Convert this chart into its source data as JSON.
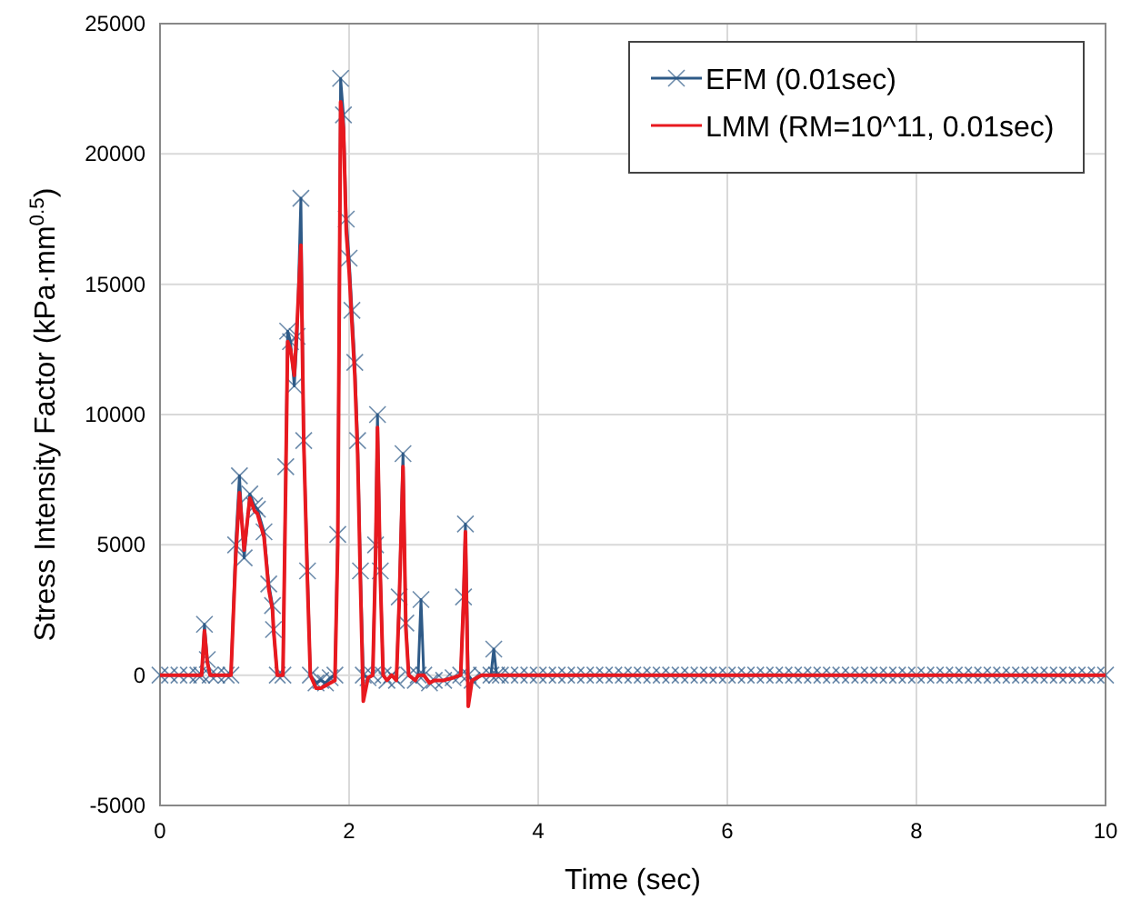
{
  "chart_data": {
    "type": "line",
    "xlabel": "Time (sec)",
    "ylabel": "Stress Intensity Factor (kPa·mm$^{0.5}$)",
    "x": [
      0,
      0.1,
      0.2,
      0.3,
      0.4,
      0.44,
      0.47,
      0.5,
      0.53,
      0.6,
      0.7,
      0.75,
      0.8,
      0.84,
      0.89,
      0.95,
      1.0,
      1.03,
      1.1,
      1.15,
      1.19,
      1.2,
      1.24,
      1.3,
      1.33,
      1.35,
      1.38,
      1.42,
      1.45,
      1.49,
      1.52,
      1.56,
      1.59,
      1.65,
      1.7,
      1.75,
      1.8,
      1.85,
      1.88,
      1.91,
      1.94,
      1.97,
      2.0,
      2.03,
      2.06,
      2.09,
      2.12,
      2.15,
      2.2,
      2.25,
      2.28,
      2.3,
      2.33,
      2.36,
      2.4,
      2.45,
      2.5,
      2.53,
      2.57,
      2.6,
      2.63,
      2.7,
      2.73,
      2.76,
      2.79,
      2.85,
      2.9,
      3.0,
      3.1,
      3.18,
      3.21,
      3.23,
      3.26,
      3.3,
      3.4,
      3.5,
      3.53,
      3.56,
      3.6,
      3.7,
      3.8,
      3.9,
      4.0,
      4.1,
      4.2,
      4.3,
      4.4,
      4.5,
      4.6,
      4.7,
      4.8,
      4.9,
      5.0,
      5.1,
      5.2,
      5.3,
      5.4,
      5.5,
      5.6,
      5.7,
      5.8,
      5.9,
      6.0,
      6.1,
      6.2,
      6.3,
      6.4,
      6.5,
      6.6,
      6.7,
      6.8,
      6.9,
      7.0,
      7.1,
      7.2,
      7.3,
      7.4,
      7.5,
      7.6,
      7.7,
      7.8,
      7.9,
      8.0,
      8.1,
      8.2,
      8.3,
      8.4,
      8.5,
      8.6,
      8.7,
      8.8,
      8.9,
      9.0,
      9.1,
      9.2,
      9.3,
      9.4,
      9.5,
      9.6,
      9.7,
      9.8,
      9.9,
      10.0
    ],
    "series": [
      {
        "name": "EFM (0.01sec)",
        "color": "#2e5a87",
        "marker": "cross",
        "values": [
          0,
          0,
          0,
          0,
          0,
          0,
          1950,
          600,
          0,
          0,
          0,
          0,
          5000,
          7650,
          4500,
          6950,
          6500,
          6370,
          5500,
          3500,
          2670,
          1750,
          0,
          0,
          8000,
          13200,
          12800,
          11100,
          13000,
          18300,
          9000,
          4000,
          0,
          -300,
          -200,
          -300,
          -100,
          0,
          5400,
          22900,
          21500,
          17500,
          16000,
          14000,
          12000,
          9000,
          4000,
          0,
          -100,
          0,
          5000,
          10000,
          4000,
          0,
          -200,
          0,
          -200,
          3000,
          8500,
          2000,
          0,
          -200,
          0,
          2900,
          0,
          -300,
          -200,
          -200,
          -100,
          0,
          3000,
          5800,
          0,
          -200,
          0,
          0,
          1000,
          0,
          0,
          0,
          0,
          0,
          0,
          0,
          0,
          0,
          0,
          0,
          0,
          0,
          0,
          0,
          0,
          0,
          0,
          0,
          0,
          0,
          0,
          0,
          0,
          0,
          0,
          0,
          0,
          0,
          0,
          0,
          0,
          0,
          0,
          0,
          0,
          0,
          0,
          0,
          0,
          0,
          0,
          0,
          0,
          0,
          0,
          0,
          0,
          0,
          0,
          0,
          0,
          0,
          0,
          0,
          0,
          0,
          0,
          0,
          0,
          0,
          0,
          0,
          0,
          0,
          0
        ]
      },
      {
        "name": "LMM (RM=10^11, 0.01sec)",
        "color": "#e8191f",
        "marker": "none",
        "values": [
          0,
          0,
          0,
          0,
          0,
          0,
          1700,
          500,
          0,
          0,
          0,
          0,
          4500,
          7000,
          4800,
          6800,
          6300,
          6200,
          5300,
          3300,
          2500,
          1800,
          0,
          0,
          7500,
          12800,
          12500,
          11500,
          13500,
          16500,
          9000,
          3500,
          0,
          -500,
          -500,
          -400,
          -300,
          -200,
          5000,
          22000,
          21000,
          17000,
          15500,
          13500,
          11500,
          8500,
          3500,
          -1000,
          -100,
          0,
          4500,
          9500,
          3800,
          0,
          -200,
          0,
          -200,
          2800,
          8000,
          1800,
          0,
          -200,
          0,
          0,
          0,
          -300,
          -200,
          -200,
          -100,
          0,
          2800,
          5500,
          -1200,
          -200,
          0,
          0,
          0,
          0,
          0,
          0,
          0,
          0,
          0,
          0,
          0,
          0,
          0,
          0,
          0,
          0,
          0,
          0,
          0,
          0,
          0,
          0,
          0,
          0,
          0,
          0,
          0,
          0,
          0,
          0,
          0,
          0,
          0,
          0,
          0,
          0,
          0,
          0,
          0,
          0,
          0,
          0,
          0,
          0,
          0,
          0,
          0,
          0,
          0,
          0,
          0,
          0,
          0,
          0,
          0,
          0,
          0,
          0,
          0,
          0,
          0,
          0,
          0,
          0,
          0,
          0,
          0,
          0,
          0
        ]
      }
    ],
    "xlim": [
      0,
      10
    ],
    "xticks": [
      0,
      2,
      4,
      6,
      8,
      10
    ],
    "ylim": [
      -5000,
      25000
    ],
    "yticks": [
      -5000,
      0,
      5000,
      10000,
      15000,
      20000,
      25000
    ],
    "grid": true,
    "legend": "top right",
    "line_style": "solid"
  }
}
